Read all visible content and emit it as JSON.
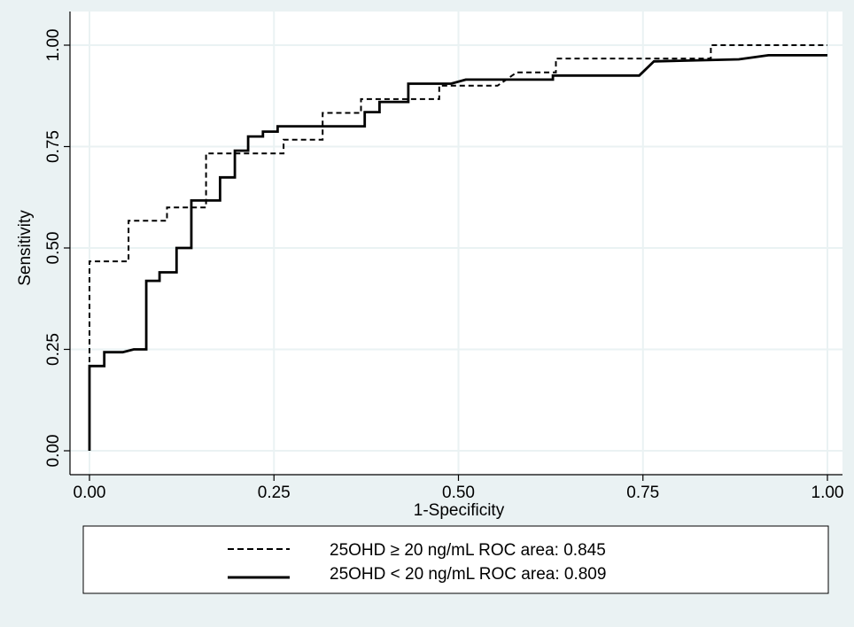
{
  "chart_data": {
    "type": "line",
    "title": "",
    "xlabel": "1-Specificity",
    "ylabel": "Sensitivity",
    "xlim": [
      0,
      1
    ],
    "ylim": [
      0,
      1
    ],
    "x_ticks": [
      "0.00",
      "0.25",
      "0.50",
      "0.75",
      "1.00"
    ],
    "y_ticks": [
      "0.00",
      "0.25",
      "0.50",
      "0.75",
      "1.00"
    ],
    "grid": true,
    "legend_position": "bottom",
    "series": [
      {
        "name": "25OHD ≥ 20 ng/mL ROC area: 0.845",
        "line_style": "dashed",
        "color": "#000000",
        "points": [
          [
            0.0,
            0.0
          ],
          [
            0.0,
            0.467
          ],
          [
            0.053,
            0.467
          ],
          [
            0.053,
            0.567
          ],
          [
            0.105,
            0.567
          ],
          [
            0.105,
            0.6
          ],
          [
            0.158,
            0.6
          ],
          [
            0.158,
            0.733
          ],
          [
            0.263,
            0.733
          ],
          [
            0.263,
            0.767
          ],
          [
            0.316,
            0.767
          ],
          [
            0.316,
            0.833
          ],
          [
            0.368,
            0.833
          ],
          [
            0.368,
            0.867
          ],
          [
            0.474,
            0.867
          ],
          [
            0.474,
            0.9
          ],
          [
            0.553,
            0.9
          ],
          [
            0.579,
            0.933
          ],
          [
            0.632,
            0.933
          ],
          [
            0.632,
            0.967
          ],
          [
            0.842,
            0.967
          ],
          [
            0.842,
            1.0
          ],
          [
            1.0,
            1.0
          ]
        ]
      },
      {
        "name": "25OHD < 20 ng/mL ROC area: 0.809",
        "line_style": "solid",
        "color": "#000000",
        "points": [
          [
            0.0,
            0.0
          ],
          [
            0.0,
            0.209
          ],
          [
            0.02,
            0.209
          ],
          [
            0.02,
            0.243
          ],
          [
            0.045,
            0.243
          ],
          [
            0.06,
            0.25
          ],
          [
            0.077,
            0.25
          ],
          [
            0.077,
            0.419
          ],
          [
            0.095,
            0.419
          ],
          [
            0.095,
            0.44
          ],
          [
            0.118,
            0.44
          ],
          [
            0.118,
            0.5
          ],
          [
            0.138,
            0.5
          ],
          [
            0.138,
            0.617
          ],
          [
            0.177,
            0.617
          ],
          [
            0.177,
            0.674
          ],
          [
            0.197,
            0.674
          ],
          [
            0.197,
            0.74
          ],
          [
            0.215,
            0.74
          ],
          [
            0.215,
            0.775
          ],
          [
            0.235,
            0.775
          ],
          [
            0.235,
            0.787
          ],
          [
            0.255,
            0.787
          ],
          [
            0.255,
            0.8
          ],
          [
            0.373,
            0.8
          ],
          [
            0.373,
            0.835
          ],
          [
            0.393,
            0.835
          ],
          [
            0.393,
            0.86
          ],
          [
            0.432,
            0.86
          ],
          [
            0.432,
            0.905
          ],
          [
            0.49,
            0.905
          ],
          [
            0.51,
            0.915
          ],
          [
            0.628,
            0.915
          ],
          [
            0.628,
            0.925
          ],
          [
            0.745,
            0.925
          ],
          [
            0.765,
            0.96
          ],
          [
            0.88,
            0.965
          ],
          [
            0.92,
            0.975
          ],
          [
            1.0,
            0.975
          ]
        ]
      }
    ]
  }
}
